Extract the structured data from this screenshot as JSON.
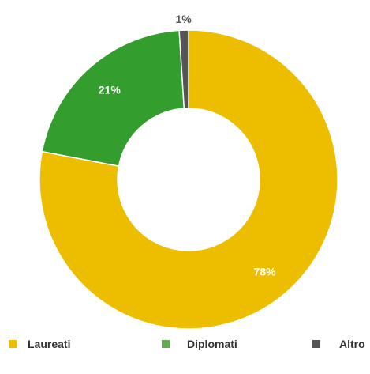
{
  "chart_data": {
    "type": "pie",
    "variant": "donut",
    "categories": [
      "Laureati",
      "Diplomati",
      "Altro"
    ],
    "values": [
      78,
      21,
      1
    ],
    "labels": [
      "78%",
      "21%",
      "1%"
    ],
    "colors": [
      "#EDBE00",
      "#339E2E",
      "#555555"
    ],
    "legend_colors": [
      "#EDBE00",
      "#63AB57",
      "#555555"
    ],
    "label_colors": [
      "#ffffff",
      "#ffffff",
      "#555555"
    ],
    "legend_position": "bottom",
    "start_angle": "top",
    "direction": "clockwise"
  }
}
